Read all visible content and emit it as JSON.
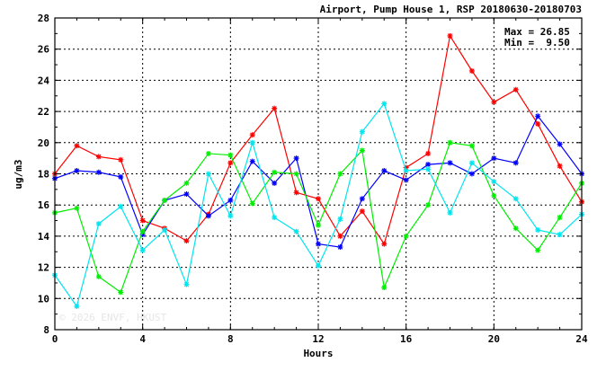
{
  "chart_data": {
    "type": "line",
    "title": "Airport, Pump House 1, RSP 20180630-20180703",
    "xlabel": "Hours",
    "ylabel": "ug/m3",
    "xlim": [
      0,
      24
    ],
    "ylim": [
      8,
      28
    ],
    "x_ticks": [
      "0",
      "4",
      "8",
      "12",
      "16",
      "20",
      "24"
    ],
    "y_ticks": [
      "8",
      "10",
      "12",
      "14",
      "16",
      "18",
      "20",
      "22",
      "24",
      "26",
      "28"
    ],
    "grid": true,
    "stats": {
      "max_label": "Max = 26.85",
      "min_label": "Min =  9.50"
    },
    "watermark": "© 2026 ENVF, HKUST",
    "x": [
      0,
      1,
      2,
      3,
      4,
      5,
      6,
      7,
      8,
      9,
      10,
      11,
      12,
      13,
      14,
      15,
      16,
      17,
      18,
      19,
      20,
      21,
      22,
      23,
      24
    ],
    "series": [
      {
        "color": "#ff0000",
        "values": [
          18.0,
          19.8,
          19.1,
          18.9,
          15.0,
          14.5,
          13.7,
          15.4,
          18.7,
          20.5,
          22.2,
          16.8,
          16.4,
          14.0,
          15.6,
          13.5,
          18.4,
          19.3,
          26.85,
          24.6,
          22.6,
          23.4,
          21.2,
          18.5,
          16.2
        ]
      },
      {
        "color": "#0000ff",
        "values": [
          17.7,
          18.2,
          18.1,
          17.8,
          14.1,
          16.3,
          16.7,
          15.3,
          16.3,
          18.8,
          17.4,
          19.0,
          13.5,
          13.3,
          16.4,
          18.2,
          17.6,
          18.6,
          18.7,
          18.0,
          19.0,
          18.7,
          21.7,
          19.9,
          18.0
        ]
      },
      {
        "color": "#00ee00",
        "values": [
          15.5,
          15.8,
          11.4,
          10.4,
          14.3,
          16.3,
          17.4,
          19.3,
          19.2,
          16.1,
          18.1,
          18.0,
          14.7,
          18.0,
          19.5,
          10.7,
          14.0,
          16.0,
          20.0,
          19.8,
          16.6,
          14.5,
          13.1,
          15.2,
          17.4
        ]
      },
      {
        "color": "#00e5ee",
        "values": [
          11.5,
          9.5,
          14.8,
          15.9,
          13.1,
          14.4,
          10.9,
          18.0,
          15.3,
          20.0,
          15.2,
          14.3,
          12.1,
          15.1,
          20.7,
          22.5,
          18.2,
          18.3,
          15.5,
          18.7,
          17.5,
          16.4,
          14.4,
          14.1,
          15.4
        ]
      }
    ]
  }
}
